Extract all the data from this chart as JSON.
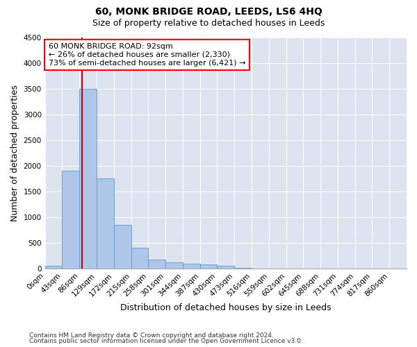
{
  "title": "60, MONK BRIDGE ROAD, LEEDS, LS6 4HQ",
  "subtitle": "Size of property relative to detached houses in Leeds",
  "xlabel": "Distribution of detached houses by size in Leeds",
  "ylabel": "Number of detached properties",
  "footnote1": "Contains HM Land Registry data © Crown copyright and database right 2024.",
  "footnote2": "Contains public sector information licensed under the Open Government Licence v3.0.",
  "annotation_line1": "60 MONK BRIDGE ROAD: 92sqm",
  "annotation_line2": "← 26% of detached houses are smaller (2,330)",
  "annotation_line3": "73% of semi-detached houses are larger (6,421) →",
  "bar_color": "#aec6e8",
  "bar_edge_color": "#5b9bd5",
  "red_line_x": 92,
  "red_line_color": "#cc0000",
  "background_color": "#dde3ef",
  "grid_color": "#ffffff",
  "categories": [
    "0sqm",
    "43sqm",
    "86sqm",
    "129sqm",
    "172sqm",
    "215sqm",
    "258sqm",
    "301sqm",
    "344sqm",
    "387sqm",
    "430sqm",
    "473sqm",
    "516sqm",
    "559sqm",
    "602sqm",
    "645sqm",
    "688sqm",
    "731sqm",
    "774sqm",
    "817sqm",
    "860sqm"
  ],
  "bin_edges": [
    0,
    43,
    86,
    129,
    172,
    215,
    258,
    301,
    344,
    387,
    430,
    473,
    516,
    559,
    602,
    645,
    688,
    731,
    774,
    817,
    860
  ],
  "values": [
    55,
    1900,
    3500,
    1750,
    850,
    400,
    175,
    125,
    100,
    80,
    55,
    10,
    5,
    3,
    0,
    0,
    0,
    0,
    0,
    0,
    0
  ],
  "ylim": [
    0,
    4500
  ],
  "yticks": [
    0,
    500,
    1000,
    1500,
    2000,
    2500,
    3000,
    3500,
    4000,
    4500
  ],
  "title_fontsize": 10,
  "subtitle_fontsize": 9,
  "axis_label_fontsize": 9,
  "tick_fontsize": 7.5,
  "annotation_fontsize": 8,
  "footnote_fontsize": 6.5
}
